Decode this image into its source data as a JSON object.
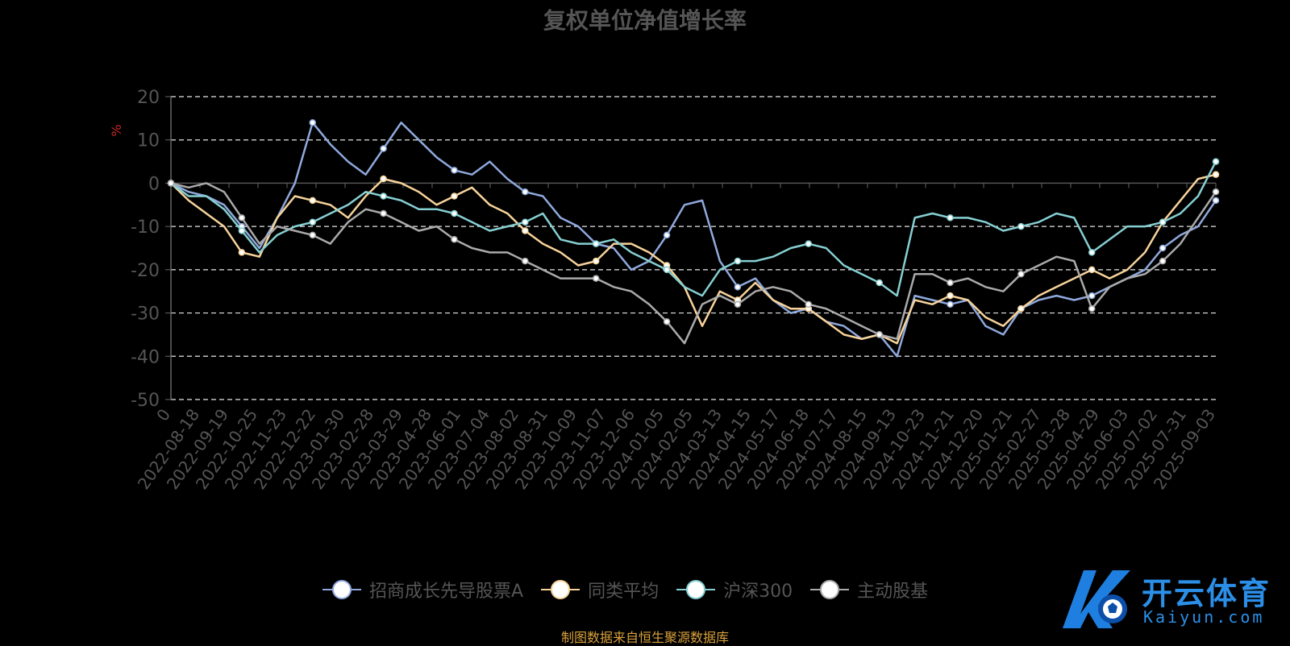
{
  "chart_data": {
    "type": "line",
    "title": "复权单位净值增长率",
    "ylabel": "%",
    "ylim": [
      -50,
      20
    ],
    "yticks": [
      20,
      10,
      0,
      -10,
      -20,
      -30,
      -40,
      -50
    ],
    "x_labels": [
      "0",
      "2022-08-18",
      "2022-09-19",
      "2022-10-25",
      "2022-11-23",
      "2022-12-22",
      "2023-01-30",
      "2023-02-28",
      "2023-03-29",
      "2023-04-28",
      "2023-06-01",
      "2023-07-04",
      "2023-08-02",
      "2023-08-31",
      "2023-10-09",
      "2023-11-07",
      "2023-12-06",
      "2024-01-05",
      "2024-02-05",
      "2024-03-13",
      "2024-04-15",
      "2024-05-17",
      "2024-06-18",
      "2024-07-17",
      "2024-08-15",
      "2024-09-13",
      "2024-10-23",
      "2024-11-21",
      "2024-12-20",
      "2025-01-21",
      "2025-02-27",
      "2025-03-28",
      "2025-04-29",
      "2025-06-03",
      "2025-07-02",
      "2025-07-31",
      "2025-09-03"
    ],
    "grid": "horizontal dashed",
    "legend_position": "bottom-center",
    "series": [
      {
        "name": "招商成长先导股票A",
        "color": "#8fa9dd",
        "values": [
          0,
          -2,
          -3,
          -5,
          -10,
          -15,
          -8,
          0,
          14,
          9,
          5,
          2,
          8,
          14,
          10,
          6,
          3,
          2,
          5,
          1,
          -2,
          -3,
          -8,
          -10,
          -14,
          -15,
          -20,
          -18,
          -12,
          -5,
          -4,
          -18,
          -24,
          -22,
          -27,
          -30,
          -29,
          -32,
          -33,
          -36,
          -35,
          -40,
          -26,
          -27,
          -28,
          -27,
          -33,
          -35,
          -29,
          -27,
          -26,
          -27,
          -26,
          -24,
          -22,
          -20,
          -15,
          -12,
          -10,
          -4
        ]
      },
      {
        "name": "同类平均",
        "color": "#f7d39a",
        "values": [
          0,
          -4,
          -7,
          -10,
          -16,
          -17,
          -8,
          -3,
          -4,
          -5,
          -8,
          -3,
          1,
          0,
          -2,
          -5,
          -3,
          -1,
          -5,
          -7,
          -11,
          -14,
          -16,
          -19,
          -18,
          -14,
          -14,
          -16,
          -19,
          -24,
          -33,
          -25,
          -27,
          -23,
          -27,
          -29,
          -29,
          -32,
          -35,
          -36,
          -35,
          -37,
          -27,
          -28,
          -26,
          -27,
          -31,
          -33,
          -29,
          -26,
          -24,
          -22,
          -20,
          -22,
          -20,
          -16,
          -9,
          -4,
          1,
          2
        ]
      },
      {
        "name": "沪深300",
        "color": "#86cfd2",
        "values": [
          0,
          -3,
          -3,
          -6,
          -11,
          -16,
          -12,
          -10,
          -9,
          -7,
          -5,
          -2,
          -3,
          -4,
          -6,
          -6,
          -7,
          -9,
          -11,
          -10,
          -9,
          -7,
          -13,
          -14,
          -14,
          -13,
          -16,
          -18,
          -20,
          -24,
          -26,
          -20,
          -18,
          -18,
          -17,
          -15,
          -14,
          -15,
          -19,
          -21,
          -23,
          -26,
          -8,
          -7,
          -8,
          -8,
          -9,
          -11,
          -10,
          -9,
          -7,
          -8,
          -16,
          -13,
          -10,
          -10,
          -9,
          -7,
          -3,
          5
        ]
      },
      {
        "name": "主动股基",
        "color": "#aaaaaa",
        "values": [
          0,
          -1,
          0,
          -2,
          -8,
          -14,
          -10,
          -11,
          -12,
          -14,
          -9,
          -6,
          -7,
          -9,
          -11,
          -10,
          -13,
          -15,
          -16,
          -16,
          -18,
          -20,
          -22,
          -22,
          -22,
          -24,
          -25,
          -28,
          -32,
          -37,
          -28,
          -26,
          -28,
          -25,
          -24,
          -25,
          -28,
          -29,
          -31,
          -33,
          -35,
          -36,
          -21,
          -21,
          -23,
          -22,
          -24,
          -25,
          -21,
          -19,
          -17,
          -18,
          -29,
          -24,
          -22,
          -21,
          -18,
          -14,
          -8,
          -2
        ]
      }
    ]
  },
  "legend": {
    "item0": "招商成长先导股票A",
    "item1": "同类平均",
    "item2": "沪深300",
    "item3": "主动股基"
  },
  "source_note": "制图数据来自恒生聚源数据库",
  "watermark": {
    "name": "开云体育",
    "url": "Kaiyun.com"
  }
}
